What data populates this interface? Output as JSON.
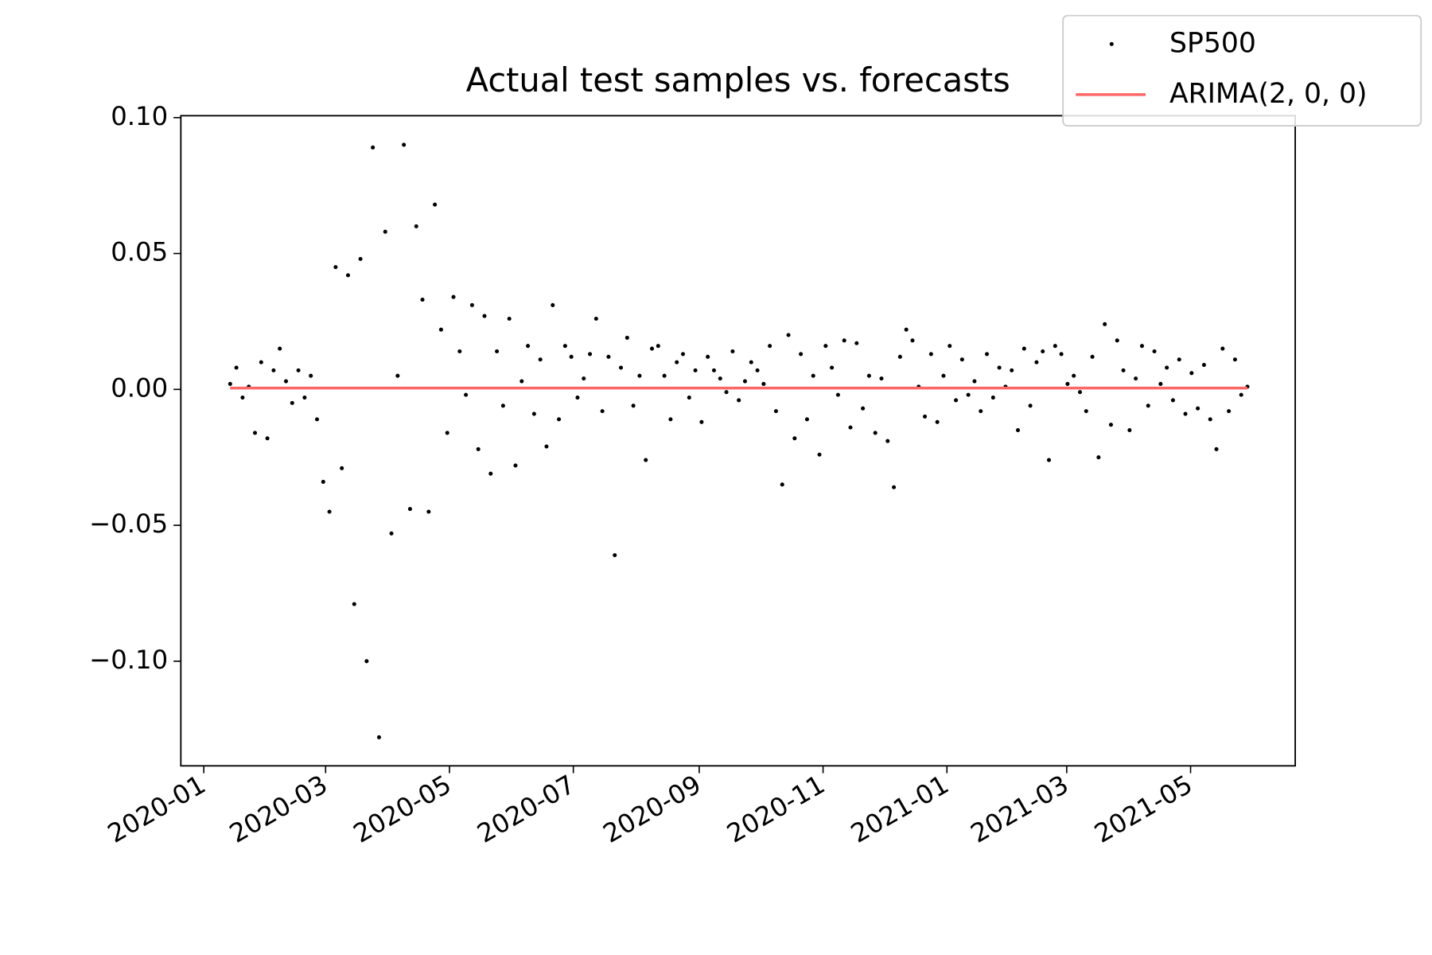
{
  "chart_data": {
    "type": "scatter",
    "title": "Actual test samples vs. forecasts",
    "xticks": [
      "2020-01",
      "2020-03",
      "2020-05",
      "2020-07",
      "2020-09",
      "2020-11",
      "2021-01",
      "2021-03",
      "2021-05"
    ],
    "ylim": [
      -0.1385,
      0.1007
    ],
    "yticks": [
      {
        "value": -0.1,
        "label": "−0.10"
      },
      {
        "value": -0.05,
        "label": "−0.05"
      },
      {
        "value": 0,
        "label": "0.00"
      },
      {
        "value": 0.05,
        "label": "0.05"
      },
      {
        "value": 0.1,
        "label": "0.10"
      }
    ],
    "legend": "upper right",
    "series": [
      {
        "name": "SP500",
        "type": "scatter",
        "color": "#000000",
        "values": [
          0.002,
          0.008,
          -0.003,
          0.001,
          -0.016,
          0.01,
          -0.018,
          0.007,
          0.015,
          0.003,
          -0.005,
          0.007,
          -0.003,
          0.005,
          -0.011,
          -0.034,
          -0.045,
          0.045,
          -0.029,
          0.042,
          -0.079,
          0.048,
          -0.1,
          0.089,
          -0.128,
          0.058,
          -0.053,
          0.005,
          0.09,
          -0.044,
          0.06,
          0.033,
          -0.045,
          0.068,
          0.022,
          -0.016,
          0.034,
          0.014,
          -0.002,
          0.031,
          -0.022,
          0.027,
          -0.031,
          0.014,
          -0.006,
          0.026,
          -0.028,
          0.003,
          0.016,
          -0.009,
          0.011,
          -0.021,
          0.031,
          -0.011,
          0.016,
          0.012,
          -0.003,
          0.004,
          0.013,
          0.026,
          -0.008,
          0.012,
          -0.061,
          0.008,
          0.019,
          -0.006,
          0.005,
          -0.026,
          0.015,
          0.016,
          0.005,
          -0.011,
          0.01,
          0.013,
          -0.003,
          0.007,
          -0.012,
          0.012,
          0.007,
          0.004,
          -0.001,
          0.014,
          -0.004,
          0.003,
          0.01,
          0.007,
          0.002,
          0.016,
          -0.008,
          -0.035,
          0.02,
          -0.018,
          0.013,
          -0.011,
          0.005,
          -0.024,
          0.016,
          0.008,
          -0.002,
          0.018,
          -0.014,
          0.017,
          -0.007,
          0.005,
          -0.016,
          0.004,
          -0.019,
          -0.036,
          0.012,
          0.022,
          0.018,
          0.001,
          -0.01,
          0.013,
          -0.012,
          0.005,
          0.016,
          -0.004,
          0.011,
          -0.002,
          0.003,
          -0.008,
          0.013,
          -0.003,
          0.008,
          0.001,
          0.007,
          -0.015,
          0.015,
          -0.006,
          0.01,
          0.014,
          -0.026,
          0.016,
          0.013,
          0.002,
          0.005,
          -0.001,
          -0.008,
          0.012,
          -0.025,
          0.024,
          -0.013,
          0.018,
          0.007,
          -0.015,
          0.004,
          0.016,
          -0.006,
          0.014,
          0.002,
          0.008,
          -0.004,
          0.011,
          -0.009,
          0.006,
          -0.007,
          0.009,
          -0.011,
          -0.022,
          0.015,
          -0.008,
          0.011,
          -0.002,
          0.001
        ]
      },
      {
        "name": "ARIMA(2, 0, 0)",
        "type": "line",
        "color": "#ff6666",
        "values": [
          0.0005,
          0.0005,
          0.0005,
          0.0005,
          0.0005,
          0.0005,
          0.0005,
          0.0005,
          0.0005,
          0.0005,
          0.0005,
          0.0005,
          0.0005,
          0.0005,
          0.0005,
          0.0005,
          0.0005,
          0.0005,
          0.0005,
          0.0005,
          0.0005,
          0.0005,
          0.0005,
          0.0005,
          0.0005,
          0.0005,
          0.0005,
          0.0005,
          0.0005,
          0.0005,
          0.0005,
          0.0005,
          0.0005,
          0.0005,
          0.0005,
          0.0005,
          0.0005,
          0.0005,
          0.0005,
          0.0005,
          0.0005,
          0.0005,
          0.0005,
          0.0005,
          0.0005,
          0.0005,
          0.0005,
          0.0005,
          0.0005,
          0.0005,
          0.0005,
          0.0005,
          0.0005,
          0.0005,
          0.0005,
          0.0005,
          0.0005,
          0.0005,
          0.0005,
          0.0005,
          0.0005,
          0.0005,
          0.0005,
          0.0005,
          0.0005,
          0.0005,
          0.0005,
          0.0005,
          0.0005,
          0.0005,
          0.0005,
          0.0005,
          0.0005,
          0.0005,
          0.0005,
          0.0005,
          0.0005,
          0.0005,
          0.0005,
          0.0005,
          0.0005,
          0.0005,
          0.0005,
          0.0005,
          0.0005,
          0.0005,
          0.0005,
          0.0005,
          0.0005,
          0.0005,
          0.0005,
          0.0005,
          0.0005,
          0.0005,
          0.0005,
          0.0005,
          0.0005,
          0.0005,
          0.0005,
          0.0005,
          0.0005,
          0.0005,
          0.0005,
          0.0005,
          0.0005,
          0.0005,
          0.0005,
          0.0005,
          0.0005,
          0.0005,
          0.0005,
          0.0005,
          0.0005,
          0.0005,
          0.0005,
          0.0005,
          0.0005,
          0.0005,
          0.0005,
          0.0005,
          0.0005,
          0.0005,
          0.0005,
          0.0005,
          0.0005,
          0.0005,
          0.0005,
          0.0005,
          0.0005,
          0.0005,
          0.0005,
          0.0005,
          0.0005,
          0.0005,
          0.0005,
          0.0005,
          0.0005,
          0.0005,
          0.0005,
          0.0005,
          0.0005,
          0.0005,
          0.0005,
          0.0005,
          0.0005,
          0.0005,
          0.0005,
          0.0005,
          0.0005,
          0.0005,
          0.0005,
          0.0005,
          0.0005,
          0.0005,
          0.0005,
          0.0005,
          0.0005,
          0.0005,
          0.0005,
          0.0005,
          0.0005,
          0.0005,
          0.0005,
          0.0005,
          0.0005
        ]
      }
    ]
  }
}
